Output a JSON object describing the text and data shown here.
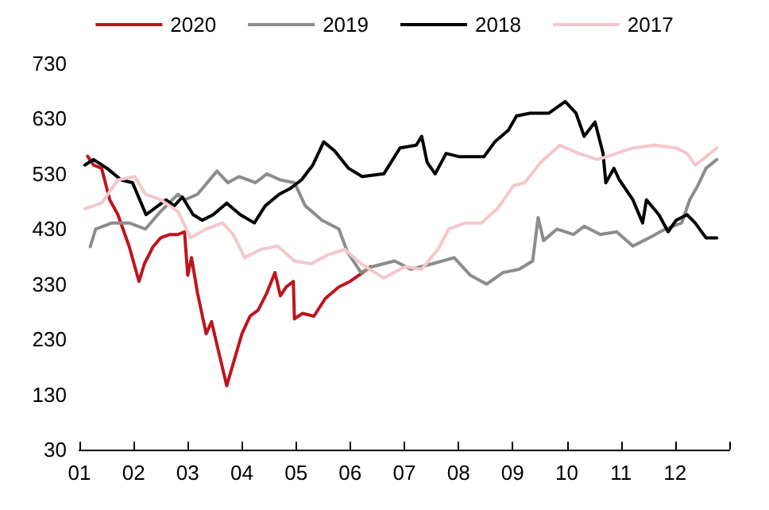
{
  "chart_data": {
    "type": "line",
    "legend": "top",
    "grid": false,
    "marker": "none",
    "line_style": "solid",
    "xlim": [
      1,
      13
    ],
    "xticks": [
      {
        "value": 1,
        "label": "01"
      },
      {
        "value": 2,
        "label": "02"
      },
      {
        "value": 3,
        "label": "03"
      },
      {
        "value": 4,
        "label": "04"
      },
      {
        "value": 5,
        "label": "05"
      },
      {
        "value": 6,
        "label": "06"
      },
      {
        "value": 7,
        "label": "07"
      },
      {
        "value": 8,
        "label": "08"
      },
      {
        "value": 9,
        "label": "09"
      },
      {
        "value": 10,
        "label": "10"
      },
      {
        "value": 11,
        "label": "11"
      },
      {
        "value": 12,
        "label": "12"
      },
      {
        "value": 13,
        "label": null
      }
    ],
    "ylim": [
      30,
      730
    ],
    "yticks": [
      30,
      130,
      230,
      330,
      430,
      530,
      630,
      730
    ],
    "series": [
      {
        "name": "2020",
        "color": "#c0141e",
        "x": [
          1.15,
          1.26,
          1.41,
          1.56,
          1.71,
          1.92,
          2.1,
          2.2,
          2.36,
          2.5,
          2.67,
          2.82,
          2.94,
          3.0,
          3.07,
          3.18,
          3.34,
          3.44,
          3.54,
          3.72,
          3.86,
          4.0,
          4.15,
          4.3,
          4.46,
          4.61,
          4.71,
          4.82,
          4.95,
          4.97,
          5.12,
          5.33,
          5.54,
          5.79,
          6.0,
          6.23,
          6.38
        ],
        "values": [
          562,
          546,
          540,
          483,
          456,
          398,
          335,
          367,
          398,
          414,
          420,
          420,
          425,
          346,
          378,
          314,
          240,
          262,
          220,
          146,
          193,
          240,
          272,
          283,
          314,
          351,
          309,
          325,
          335,
          267,
          277,
          272,
          304,
          325,
          335,
          351,
          362
        ]
      },
      {
        "name": "2019",
        "color": "#8c8c8c",
        "x": [
          1.2,
          1.3,
          1.6,
          1.92,
          2.22,
          2.5,
          2.82,
          2.95,
          3.18,
          3.54,
          3.74,
          3.95,
          4.25,
          4.46,
          4.71,
          4.97,
          5.17,
          5.48,
          5.79,
          5.95,
          6.2,
          6.42,
          6.82,
          7.12,
          7.52,
          7.92,
          8.22,
          8.52,
          8.82,
          9.12,
          9.37,
          9.47,
          9.57,
          9.82,
          10.12,
          10.32,
          10.62,
          10.92,
          11.22,
          11.52,
          11.82,
          12.12,
          12.27,
          12.42,
          12.57,
          12.77
        ],
        "values": [
          398,
          430,
          441,
          441,
          430,
          462,
          493,
          483,
          493,
          535,
          514,
          525,
          514,
          530,
          519,
          514,
          472,
          446,
          430,
          388,
          351,
          362,
          372,
          357,
          367,
          378,
          346,
          330,
          351,
          357,
          372,
          451,
          409,
          430,
          420,
          435,
          420,
          425,
          399,
          414,
          430,
          441,
          483,
          509,
          540,
          556
        ]
      },
      {
        "name": "2018",
        "color": "#000000",
        "x": [
          1.1,
          1.26,
          1.51,
          1.77,
          1.98,
          2.23,
          2.45,
          2.6,
          2.75,
          2.9,
          3.1,
          3.27,
          3.47,
          3.72,
          3.97,
          4.23,
          4.43,
          4.69,
          4.9,
          5.1,
          5.31,
          5.51,
          5.71,
          5.97,
          6.22,
          6.62,
          6.92,
          7.22,
          7.32,
          7.42,
          7.57,
          7.77,
          8.02,
          8.22,
          8.47,
          8.67,
          8.92,
          9.07,
          9.32,
          9.67,
          9.97,
          10.17,
          10.32,
          10.52,
          10.67,
          10.72,
          10.87,
          10.97,
          11.22,
          11.4,
          11.47,
          11.7,
          11.87,
          12.02,
          12.22,
          12.37,
          12.57,
          12.77
        ],
        "values": [
          546,
          556,
          540,
          519,
          514,
          456,
          472,
          483,
          472,
          488,
          456,
          446,
          456,
          477,
          456,
          441,
          472,
          493,
          504,
          519,
          546,
          588,
          572,
          540,
          525,
          530,
          577,
          582,
          598,
          551,
          530,
          567,
          561,
          561,
          561,
          588,
          609,
          635,
          640,
          640,
          661,
          640,
          598,
          624,
          567,
          514,
          540,
          519,
          483,
          441,
          483,
          456,
          425,
          446,
          456,
          441,
          414,
          414
        ]
      },
      {
        "name": "2017",
        "color": "#f4c7cc",
        "x": [
          1.1,
          1.41,
          1.71,
          2.02,
          2.22,
          2.5,
          2.82,
          3.05,
          3.34,
          3.64,
          3.84,
          4.05,
          4.35,
          4.66,
          4.97,
          5.28,
          5.58,
          5.9,
          6.2,
          6.62,
          7.02,
          7.32,
          7.62,
          7.82,
          8.12,
          8.42,
          8.72,
          9.02,
          9.22,
          9.52,
          9.87,
          10.22,
          10.57,
          10.92,
          11.22,
          11.62,
          12.02,
          12.22,
          12.37,
          12.57,
          12.77
        ],
        "values": [
          467,
          477,
          519,
          525,
          493,
          483,
          462,
          414,
          430,
          441,
          420,
          378,
          393,
          399,
          372,
          367,
          383,
          393,
          367,
          341,
          362,
          357,
          393,
          430,
          441,
          441,
          467,
          509,
          514,
          551,
          582,
          567,
          556,
          567,
          577,
          582,
          577,
          567,
          546,
          561,
          577
        ]
      }
    ]
  }
}
